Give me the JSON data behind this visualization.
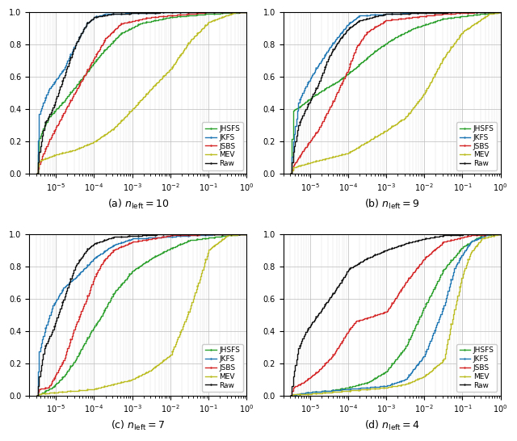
{
  "methods": [
    "JHSFS",
    "JKFS",
    "JSBS",
    "MEV",
    "Raw"
  ],
  "colors": {
    "JHSFS": "#2ca02c",
    "JKFS": "#1f77b4",
    "JSBS": "#d62728",
    "MEV": "#bcbd22",
    "Raw": "#111111"
  },
  "figsize": [
    6.4,
    5.46
  ],
  "dpi": 100,
  "subplot_labels": [
    "(a)",
    "(b)",
    "(c)",
    "(d)"
  ],
  "n_lefts": [
    10,
    9,
    7,
    4
  ]
}
